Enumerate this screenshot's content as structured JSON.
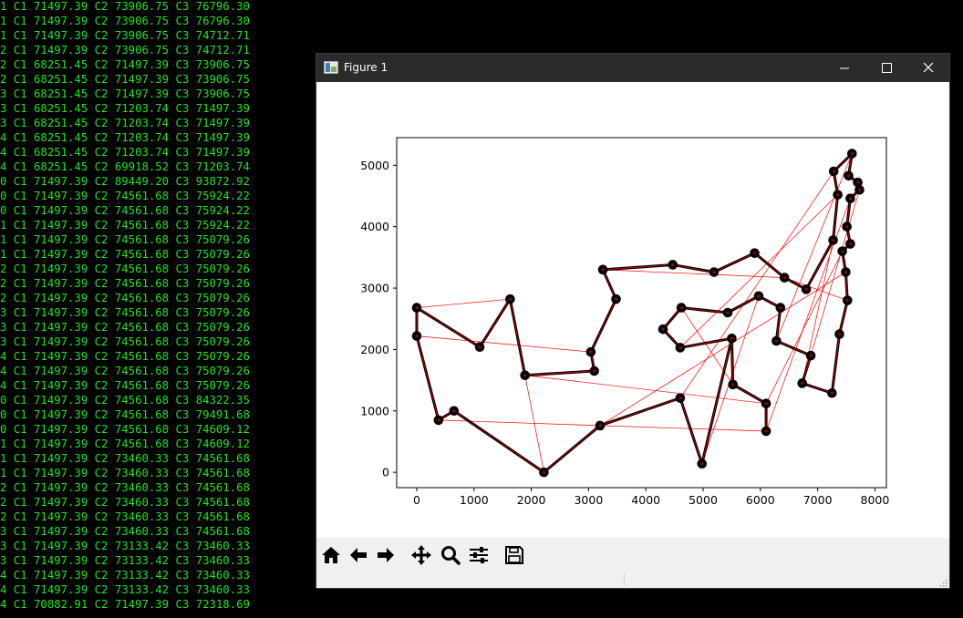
{
  "console": {
    "lines": [
      "1 C1 71497.39 C2 73906.75 C3 76796.30",
      "1 C1 71497.39 C2 73906.75 C3 76796.30",
      "1 C1 71497.39 C2 73906.75 C3 74712.71",
      "2 C1 71497.39 C2 73906.75 C3 74712.71",
      "2 C1 68251.45 C2 71497.39 C3 73906.75",
      "2 C1 68251.45 C2 71497.39 C3 73906.75",
      "3 C1 68251.45 C2 71497.39 C3 73906.75",
      "3 C1 68251.45 C2 71203.74 C3 71497.39",
      "3 C1 68251.45 C2 71203.74 C3 71497.39",
      "4 C1 68251.45 C2 71203.74 C3 71497.39",
      "4 C1 68251.45 C2 71203.74 C3 71497.39",
      "4 C1 68251.45 C2 69918.52 C3 71203.74",
      "0 C1 71497.39 C2 89449.20 C3 93872.92",
      "0 C1 71497.39 C2 74561.68 C3 75924.22",
      "0 C1 71497.39 C2 74561.68 C3 75924.22",
      "1 C1 71497.39 C2 74561.68 C3 75924.22",
      "1 C1 71497.39 C2 74561.68 C3 75079.26",
      "1 C1 71497.39 C2 74561.68 C3 75079.26",
      "2 C1 71497.39 C2 74561.68 C3 75079.26",
      "2 C1 71497.39 C2 74561.68 C3 75079.26",
      "2 C1 71497.39 C2 74561.68 C3 75079.26",
      "3 C1 71497.39 C2 74561.68 C3 75079.26",
      "3 C1 71497.39 C2 74561.68 C3 75079.26",
      "3 C1 71497.39 C2 74561.68 C3 75079.26",
      "4 C1 71497.39 C2 74561.68 C3 75079.26",
      "4 C1 71497.39 C2 74561.68 C3 75079.26",
      "4 C1 71497.39 C2 74561.68 C3 75079.26",
      "0 C1 71497.39 C2 74561.68 C3 84322.35",
      "0 C1 71497.39 C2 74561.68 C3 79491.68",
      "0 C1 71497.39 C2 74561.68 C3 74609.12",
      "1 C1 71497.39 C2 74561.68 C3 74609.12",
      "1 C1 71497.39 C2 73460.33 C3 74561.68",
      "1 C1 71497.39 C2 73460.33 C3 74561.68",
      "2 C1 71497.39 C2 73460.33 C3 74561.68",
      "2 C1 71497.39 C2 73460.33 C3 74561.68",
      "2 C1 71497.39 C2 73460.33 C3 74561.68",
      "3 C1 71497.39 C2 73460.33 C3 74561.68",
      "3 C1 71497.39 C2 73133.42 C3 73460.33",
      "3 C1 71497.39 C2 73133.42 C3 73460.33",
      "4 C1 71497.39 C2 73133.42 C3 73460.33",
      "4 C1 71497.39 C2 73133.42 C3 73460.33",
      "4 C1 70882.91 C2 71497.39 C3 72318.69"
    ]
  },
  "window": {
    "title": "Figure 1",
    "icons": [
      "app-icon",
      "minimize-icon",
      "maximize-icon",
      "close-icon"
    ]
  },
  "toolbar": {
    "icons": [
      "home-icon",
      "back-arrow-icon",
      "forward-arrow-icon",
      "pan-icon",
      "zoom-icon",
      "configure-subplots-icon",
      "save-icon"
    ]
  },
  "colors": {
    "console_text": "#1ee61e",
    "tour": "#000000",
    "edges": "#ff0000",
    "titlebar": "#2b2b2b"
  },
  "chart_data": {
    "type": "scatter",
    "title": "",
    "xlabel": "",
    "ylabel": "",
    "xlim": [
      -350,
      8200
    ],
    "ylim": [
      -250,
      5450
    ],
    "xticks": [
      "0",
      "1000",
      "2000",
      "3000",
      "4000",
      "5000",
      "6000",
      "7000",
      "8000"
    ],
    "yticks": [
      "0",
      "1000",
      "2000",
      "3000",
      "4000",
      "5000"
    ],
    "grid": false,
    "legend": "none",
    "points": [
      [
        0,
        2680
      ],
      [
        0,
        2220
      ],
      [
        380,
        850
      ],
      [
        650,
        1000
      ],
      [
        1100,
        2040
      ],
      [
        1630,
        2820
      ],
      [
        1890,
        1580
      ],
      [
        2220,
        0
      ],
      [
        3040,
        1960
      ],
      [
        3100,
        1650
      ],
      [
        3200,
        760
      ],
      [
        3250,
        3300
      ],
      [
        3480,
        2820
      ],
      [
        4470,
        3380
      ],
      [
        4600,
        1210
      ],
      [
        4300,
        2330
      ],
      [
        4600,
        2030
      ],
      [
        4620,
        2680
      ],
      [
        4980,
        140
      ],
      [
        5190,
        3260
      ],
      [
        5430,
        2600
      ],
      [
        5520,
        1430
      ],
      [
        5500,
        2180
      ],
      [
        5900,
        3570
      ],
      [
        5970,
        2870
      ],
      [
        6100,
        670
      ],
      [
        6100,
        1120
      ],
      [
        6280,
        2140
      ],
      [
        6350,
        2680
      ],
      [
        6420,
        3170
      ],
      [
        6730,
        1450
      ],
      [
        6800,
        2980
      ],
      [
        6880,
        1900
      ],
      [
        7250,
        1290
      ],
      [
        7270,
        3780
      ],
      [
        7280,
        4900
      ],
      [
        7350,
        4520
      ],
      [
        7380,
        2250
      ],
      [
        7430,
        3600
      ],
      [
        7490,
        3260
      ],
      [
        7520,
        2800
      ],
      [
        7510,
        4000
      ],
      [
        7540,
        4830
      ],
      [
        7570,
        3720
      ],
      [
        7570,
        4460
      ],
      [
        7600,
        5190
      ],
      [
        7700,
        4720
      ],
      [
        7730,
        4600
      ]
    ],
    "tour_path": [
      [
        0,
        2680
      ],
      [
        0,
        2220
      ],
      [
        380,
        850
      ],
      [
        650,
        1000
      ],
      [
        2220,
        0
      ],
      [
        3200,
        760
      ],
      [
        4600,
        1210
      ],
      [
        4980,
        140
      ],
      [
        5500,
        2180
      ],
      [
        5520,
        1430
      ],
      [
        6100,
        1120
      ],
      [
        6100,
        670
      ]
    ],
    "tour_path_2": [
      [
        0,
        2680
      ],
      [
        1100,
        2040
      ],
      [
        1630,
        2820
      ],
      [
        1890,
        1580
      ],
      [
        3100,
        1650
      ],
      [
        3040,
        1960
      ],
      [
        3480,
        2820
      ],
      [
        3250,
        3300
      ],
      [
        4470,
        3380
      ],
      [
        5190,
        3260
      ],
      [
        5900,
        3570
      ],
      [
        6420,
        3170
      ],
      [
        6800,
        2980
      ],
      [
        7270,
        3780
      ],
      [
        7350,
        4520
      ],
      [
        7280,
        4900
      ],
      [
        7600,
        5190
      ],
      [
        7540,
        4830
      ],
      [
        7700,
        4720
      ],
      [
        7730,
        4600
      ],
      [
        7570,
        4460
      ],
      [
        7510,
        4000
      ],
      [
        7570,
        3720
      ],
      [
        7430,
        3600
      ],
      [
        7490,
        3260
      ],
      [
        7520,
        2800
      ],
      [
        7380,
        2250
      ],
      [
        7250,
        1290
      ],
      [
        6730,
        1450
      ],
      [
        6880,
        1900
      ],
      [
        6280,
        2140
      ],
      [
        6350,
        2680
      ],
      [
        5970,
        2870
      ],
      [
        5430,
        2600
      ],
      [
        4620,
        2680
      ],
      [
        4300,
        2330
      ],
      [
        4600,
        2030
      ],
      [
        5500,
        2180
      ]
    ],
    "red_edges": [
      [
        [
          0,
          2680
        ],
        [
          1630,
          2820
        ]
      ],
      [
        [
          0,
          2220
        ],
        [
          3040,
          1960
        ]
      ],
      [
        [
          380,
          850
        ],
        [
          6100,
          670
        ]
      ],
      [
        [
          1890,
          1580
        ],
        [
          6100,
          1120
        ]
      ],
      [
        [
          1890,
          1580
        ],
        [
          2220,
          0
        ]
      ],
      [
        [
          3200,
          760
        ],
        [
          7490,
          3260
        ]
      ],
      [
        [
          4600,
          1210
        ],
        [
          7280,
          4900
        ]
      ],
      [
        [
          4980,
          140
        ],
        [
          5970,
          2870
        ]
      ],
      [
        [
          4600,
          2030
        ],
        [
          7350,
          4520
        ]
      ],
      [
        [
          6100,
          670
        ],
        [
          7570,
          4460
        ]
      ],
      [
        [
          6100,
          1120
        ],
        [
          7430,
          3600
        ]
      ],
      [
        [
          6730,
          1450
        ],
        [
          7270,
          3780
        ]
      ],
      [
        [
          5520,
          1430
        ],
        [
          4620,
          2680
        ]
      ],
      [
        [
          6420,
          3170
        ],
        [
          7520,
          2800
        ]
      ],
      [
        [
          6280,
          2140
        ],
        [
          7600,
          5190
        ]
      ],
      [
        [
          3250,
          3300
        ],
        [
          6420,
          3170
        ]
      ],
      [
        [
          6880,
          1900
        ],
        [
          7730,
          4600
        ]
      ]
    ]
  }
}
